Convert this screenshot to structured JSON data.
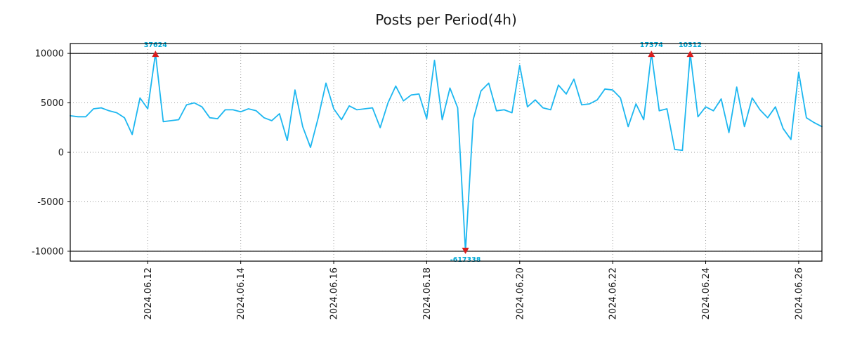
{
  "title": "Posts per Period(4h)",
  "chart_data": {
    "type": "line",
    "title": "Posts per Period(4h)",
    "xlabel": "",
    "ylabel": "",
    "grid": true,
    "legend": "none",
    "ylim": [
      -11000,
      11000
    ],
    "clip_value": 10000,
    "y_ticks": [
      10000,
      5000,
      0,
      -5000,
      -10000
    ],
    "x_ticks": [
      {
        "index": 10,
        "label": "2024.06.12"
      },
      {
        "index": 22,
        "label": "2024.06.14"
      },
      {
        "index": 34,
        "label": "2024.06.16"
      },
      {
        "index": 46,
        "label": "2024.06.18"
      },
      {
        "index": 58,
        "label": "2024.06.20"
      },
      {
        "index": 70,
        "label": "2024.06.22"
      },
      {
        "index": 82,
        "label": "2024.06.24"
      },
      {
        "index": 94,
        "label": "2024.06.26"
      }
    ],
    "values": [
      3700,
      3600,
      3600,
      4400,
      4500,
      4200,
      4000,
      3500,
      1800,
      5500,
      4400,
      37624,
      3100,
      3200,
      3300,
      4800,
      5000,
      4600,
      3500,
      3400,
      4300,
      4300,
      4100,
      4400,
      4200,
      3500,
      3200,
      3900,
      1200,
      6300,
      2600,
      500,
      3500,
      7000,
      4400,
      3300,
      4700,
      4300,
      4400,
      4500,
      2500,
      5000,
      6700,
      5200,
      5800,
      5900,
      3400,
      9300,
      3300,
      6500,
      4500,
      -617338,
      3300,
      6200,
      7000,
      4200,
      4300,
      4000,
      8800,
      4600,
      5300,
      4500,
      4300,
      6800,
      5900,
      7400,
      4800,
      4900,
      5300,
      6400,
      6300,
      5500,
      2600,
      4900,
      3300,
      17374,
      4200,
      4400,
      300,
      200,
      10312,
      3600,
      4600,
      4200,
      5400,
      2000,
      6600,
      2600,
      5500,
      4300,
      3500,
      4600,
      2400,
      1300,
      8100,
      3500,
      3000,
      2600
    ],
    "annotations": [
      {
        "index": 11,
        "value": 37624,
        "label": "37624",
        "direction": "up"
      },
      {
        "index": 51,
        "value": -617338,
        "label": "-617338",
        "direction": "down"
      },
      {
        "index": 75,
        "value": 17374,
        "label": "17374",
        "direction": "up"
      },
      {
        "index": 80,
        "value": 10312,
        "label": "10312",
        "direction": "up"
      }
    ],
    "colors": {
      "line": "#1db7f0",
      "marker": "#d81e1e",
      "annotation": "#00a9d6",
      "grid": "#9a9a9a",
      "axis": "#000000",
      "text": "#1a1a1a"
    }
  }
}
